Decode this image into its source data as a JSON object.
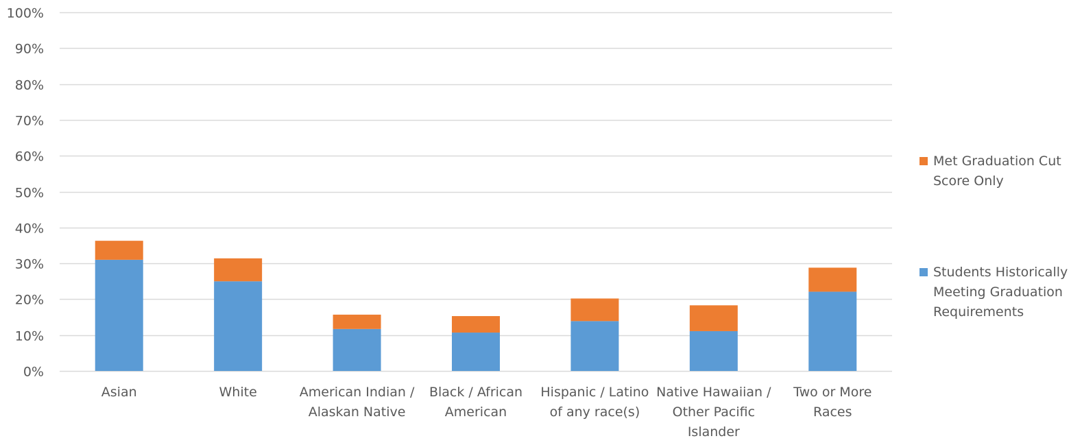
{
  "chart_data": {
    "type": "bar",
    "stacked": true,
    "categories": [
      [
        "Asian"
      ],
      [
        "White"
      ],
      [
        "American Indian /",
        "Alaskan Native"
      ],
      [
        "Black / African",
        "American"
      ],
      [
        "Hispanic / Latino",
        "of any race(s)"
      ],
      [
        "Native Hawaiian /",
        "Other Pacific",
        "Islander"
      ],
      [
        "Two or More",
        "Races"
      ]
    ],
    "series": [
      {
        "name": "Students Historically Meeting Graduation Requirements",
        "legend_lines": [
          "Students Historically",
          "Meeting Graduation",
          "Requirements"
        ],
        "color": "#5B9BD5",
        "values": [
          31,
          25,
          11.7,
          10.7,
          13.9,
          11.1,
          22.1
        ]
      },
      {
        "name": "Met Graduation Cut Score Only",
        "legend_lines": [
          "Met Graduation Cut",
          "Score Only"
        ],
        "color": "#ED7D31",
        "values": [
          5.3,
          6.4,
          4,
          4.6,
          6.3,
          7.2,
          6.7
        ]
      }
    ],
    "ylim": [
      0,
      100
    ],
    "yticks": [
      0,
      10,
      20,
      30,
      40,
      50,
      60,
      70,
      80,
      90,
      100
    ],
    "ytick_labels": [
      "0%",
      "10%",
      "20%",
      "30%",
      "40%",
      "50%",
      "60%",
      "70%",
      "80%",
      "90%",
      "100%"
    ],
    "grid": true,
    "gridline_color": "#D9D9D9",
    "axis_text_color": "#595959",
    "legend_position": "right",
    "legend_order": [
      1,
      0
    ]
  }
}
